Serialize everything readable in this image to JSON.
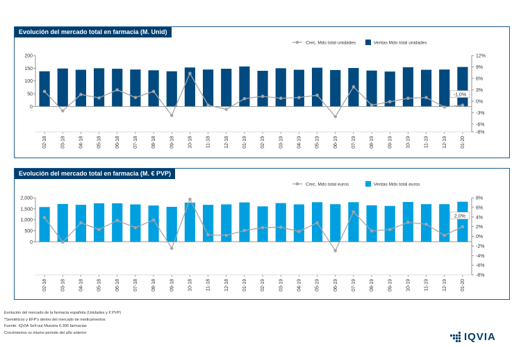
{
  "chart_data": [
    {
      "type": "bar",
      "title": "Evolución del mercado total en farmacia (M. Unid)",
      "categories": [
        "02-18",
        "03-18",
        "04-18",
        "05-18",
        "06-18",
        "07-18",
        "08-18",
        "09-18",
        "10-18",
        "11-18",
        "12-18",
        "01-19",
        "02-19",
        "03-19",
        "04-19",
        "05-19",
        "06-19",
        "07-19",
        "08-19",
        "09-19",
        "10-19",
        "11-19",
        "12-19",
        "01-20"
      ],
      "series": [
        {
          "name": "Ventas Mdo total unidades",
          "type": "bar",
          "axis": "left",
          "color": "#004a80",
          "values": [
            138,
            149,
            144,
            150,
            148,
            145,
            142,
            138,
            153,
            145,
            148,
            157,
            140,
            150,
            144,
            152,
            143,
            151,
            141,
            137,
            154,
            144,
            145,
            155
          ]
        },
        {
          "name": "Crec. Mdo total unidades",
          "type": "line",
          "axis": "right",
          "color": "#a6a6a6",
          "values": [
            2.6,
            -2.5,
            1.8,
            0.9,
            3.0,
            1.0,
            2.6,
            -3.7,
            7.3,
            -1.0,
            -2.1,
            0.7,
            1.3,
            0.8,
            1.0,
            1.6,
            -4.0,
            3.8,
            -1.0,
            -0.1,
            0.8,
            1.0,
            -1.5,
            -1.0
          ]
        }
      ],
      "yticks_left": [
        "200",
        "150",
        "100",
        "50",
        "0"
      ],
      "yticks_right": [
        "12%",
        "9%",
        "6%",
        "3%",
        "0%",
        "-3%",
        "-6%",
        "-8%"
      ],
      "ylim_left": [
        -100,
        200
      ],
      "ylim_right": [
        -8,
        12
      ],
      "last_label": "-1,0%"
    },
    {
      "type": "bar",
      "title": "Evolución del mercado total en farmacia (M. € PVP)",
      "categories": [
        "02-18",
        "03-18",
        "04-18",
        "05-18",
        "06-18",
        "07-18",
        "08-18",
        "09-18",
        "10-18",
        "11-18",
        "12-18",
        "01-19",
        "02-19",
        "03-19",
        "04-19",
        "05-19",
        "06-19",
        "07-19",
        "08-19",
        "09-19",
        "10-19",
        "11-19",
        "12-19",
        "01-20"
      ],
      "series": [
        {
          "name": "Ventas Mdo total euros",
          "type": "bar",
          "axis": "left",
          "color": "#00a0e0",
          "values": [
            1580,
            1720,
            1680,
            1750,
            1750,
            1700,
            1650,
            1590,
            1780,
            1680,
            1700,
            1790,
            1610,
            1760,
            1700,
            1800,
            1710,
            1800,
            1660,
            1630,
            1810,
            1710,
            1710,
            1820
          ]
        },
        {
          "name": "Crec. Mdo total euros",
          "type": "line",
          "axis": "right",
          "color": "#a6a6a6",
          "values": [
            3.9,
            -1.2,
            2.8,
            1.4,
            3.3,
            1.8,
            3.4,
            -2.5,
            7.7,
            0.3,
            0.2,
            1.2,
            1.8,
            1.9,
            1.0,
            2.8,
            -3.0,
            5.1,
            1.1,
            1.4,
            2.9,
            2.5,
            0.2,
            2.0
          ]
        }
      ],
      "yticks_left": [
        "2,000",
        "1,500",
        "1,000",
        "500",
        "0"
      ],
      "yticks_right": [
        "8%",
        "6%",
        "4%",
        "2%",
        "0%",
        "-2%",
        "-4%",
        "-6%",
        "-8%"
      ],
      "ylim_left": [
        -1500,
        2000
      ],
      "ylim_right": [
        -8,
        8
      ],
      "last_label": "2,0%"
    }
  ],
  "footer": {
    "line1": "Evolución del mercado de la farmacia española (Unidades y € PVP)",
    "line2": "*Semiéticos y EFP's dentro del mercado de medicamentos",
    "line3": "Fuente: IQVIA Sell-out Muestra 6.300 farmacias",
    "line4": "Crecimientos vs mismo periodo del año anterior"
  },
  "logo": {
    "text": "IQVIA",
    "color": "#003e6e"
  }
}
